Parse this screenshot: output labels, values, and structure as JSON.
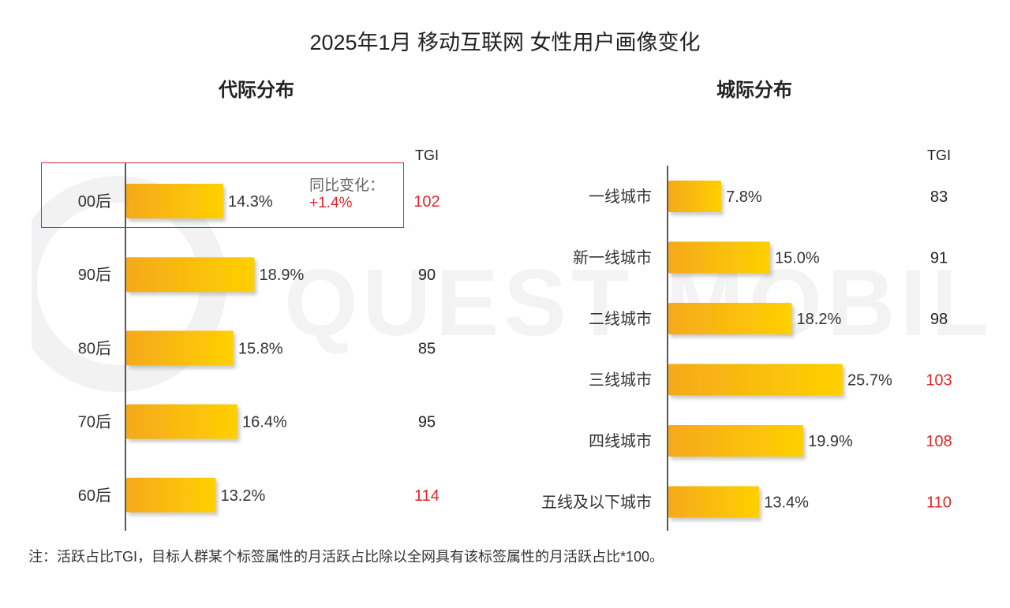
{
  "title": "2025年1月 移动互联网 女性用户画像变化",
  "watermark": "QUEST MOBILE",
  "footnote": "注：活跃占比TGI，目标人群某个标签属性的月活跃占比除以全网具有该标签属性的月活跃占比*100。",
  "colors": {
    "bar_start": "#f5a91b",
    "bar_end": "#ffd000",
    "tgi_high": "#e0262b",
    "tgi_normal": "#222222",
    "axis": "#222222"
  },
  "highlight": {
    "label": "同比变化：",
    "value": "+1.4%"
  },
  "chart_data": [
    {
      "type": "bar",
      "orientation": "horizontal",
      "title": "代际分布",
      "tgi_header": "TGI",
      "categories": [
        "00后",
        "90后",
        "80后",
        "70后",
        "60后"
      ],
      "values": [
        14.3,
        18.9,
        15.8,
        16.4,
        13.2
      ],
      "value_labels": [
        "14.3%",
        "18.9%",
        "15.8%",
        "16.4%",
        "13.2%"
      ],
      "tgi": [
        102,
        90,
        85,
        95,
        114
      ],
      "tgi_highlighted": [
        true,
        false,
        false,
        false,
        true
      ]
    },
    {
      "type": "bar",
      "orientation": "horizontal",
      "title": "城际分布",
      "tgi_header": "TGI",
      "categories": [
        "一线城市",
        "新一线城市",
        "二线城市",
        "三线城市",
        "四线城市",
        "五线及以下城市"
      ],
      "values": [
        7.8,
        15.0,
        18.2,
        25.7,
        19.9,
        13.4
      ],
      "value_labels": [
        "7.8%",
        "15.0%",
        "18.2%",
        "25.7%",
        "19.9%",
        "13.4%"
      ],
      "tgi": [
        83,
        91,
        98,
        103,
        108,
        110
      ],
      "tgi_highlighted": [
        false,
        false,
        false,
        true,
        true,
        true
      ]
    }
  ]
}
